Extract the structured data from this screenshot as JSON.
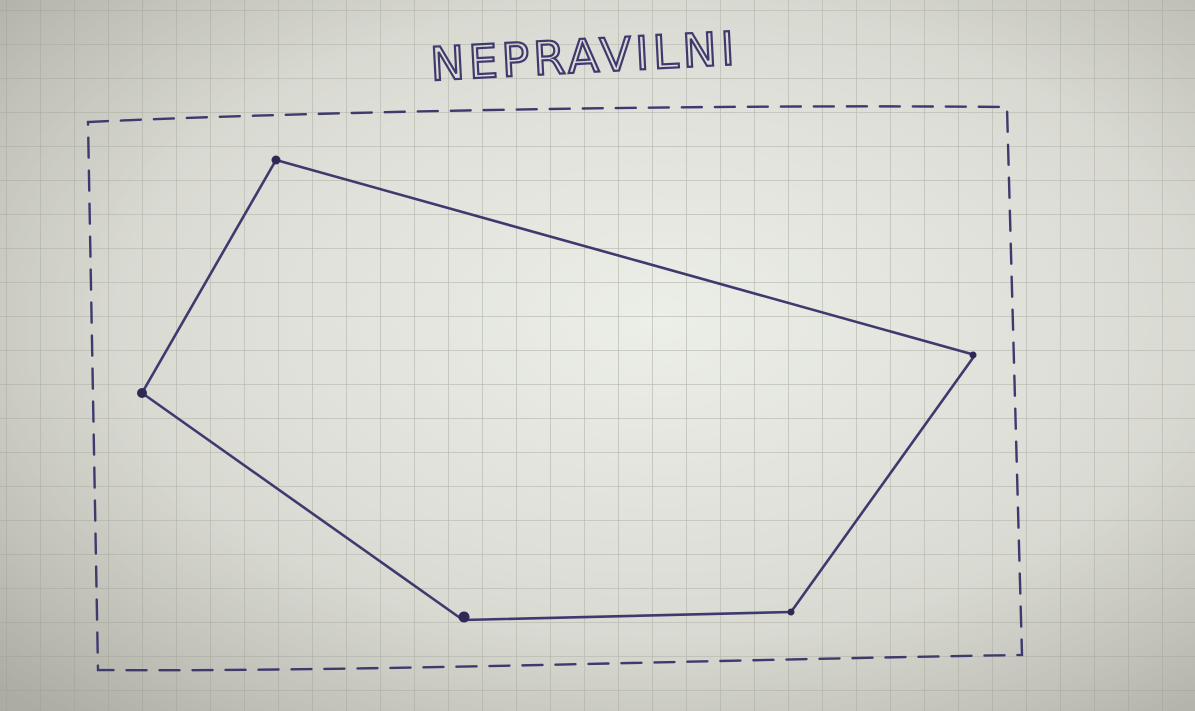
{
  "title": "NEPRAVILNI",
  "colors": {
    "paper": "#e4e5df",
    "grid": "#b7b8ae",
    "ink": "#3f3a6e"
  },
  "shapes": {
    "polygon_vertex_count": 5,
    "bounding_rectangle_style": "dashed"
  }
}
